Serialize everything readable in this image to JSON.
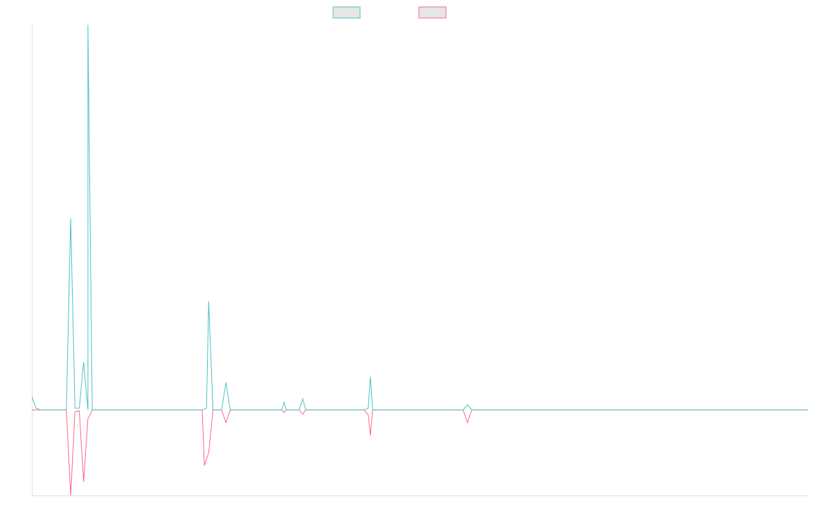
{
  "colors": {
    "series_a": "#4bc0c0",
    "series_b": "#ff6384",
    "legend_fill": "#e6e6e6",
    "axis": "#e0e0e0"
  },
  "chart_data": {
    "type": "line",
    "title": "",
    "xlabel": "",
    "ylabel": "",
    "grid": false,
    "legend": "top-center",
    "ylim": [
      -100,
      450
    ],
    "xlim": [
      0,
      180
    ],
    "series": [
      {
        "color": "#4bc0c0",
        "points": [
          [
            0,
            15
          ],
          [
            1,
            2
          ],
          [
            2,
            0
          ],
          [
            8,
            0
          ],
          [
            9,
            224
          ],
          [
            10,
            2
          ],
          [
            11,
            2
          ],
          [
            12,
            56
          ],
          [
            13,
            0
          ],
          [
            13,
            450
          ],
          [
            14,
            0
          ],
          [
            39.5,
            0
          ],
          [
            40.5,
            2
          ],
          [
            41,
            127
          ],
          [
            42,
            0
          ],
          [
            44,
            0
          ],
          [
            45,
            32
          ],
          [
            46,
            0
          ],
          [
            58,
            0
          ],
          [
            58.5,
            9
          ],
          [
            59,
            0
          ],
          [
            62,
            0
          ],
          [
            62.8,
            13
          ],
          [
            63.5,
            0
          ],
          [
            77,
            0
          ],
          [
            78,
            2
          ],
          [
            78.5,
            39
          ],
          [
            79,
            0
          ],
          [
            100,
            0
          ],
          [
            101,
            6
          ],
          [
            102,
            0
          ],
          [
            180,
            0
          ]
        ]
      },
      {
        "color": "#ff6384",
        "points": [
          [
            0,
            0
          ],
          [
            8,
            0
          ],
          [
            9,
            -100
          ],
          [
            10,
            -2
          ],
          [
            11,
            -1
          ],
          [
            12,
            -84
          ],
          [
            13,
            -10
          ],
          [
            13.5,
            -6
          ],
          [
            14,
            0
          ],
          [
            39.5,
            0
          ],
          [
            40,
            -65
          ],
          [
            41,
            -50
          ],
          [
            42,
            0
          ],
          [
            44,
            0
          ],
          [
            45,
            -15
          ],
          [
            46,
            0
          ],
          [
            58,
            0
          ],
          [
            58.5,
            -3
          ],
          [
            59,
            0
          ],
          [
            62,
            0
          ],
          [
            62.8,
            -5
          ],
          [
            63.5,
            0
          ],
          [
            77,
            0
          ],
          [
            78,
            -6
          ],
          [
            78.5,
            -30
          ],
          [
            79,
            0
          ],
          [
            100,
            0
          ],
          [
            101,
            -15
          ],
          [
            102,
            0
          ],
          [
            180,
            0
          ]
        ]
      }
    ]
  }
}
